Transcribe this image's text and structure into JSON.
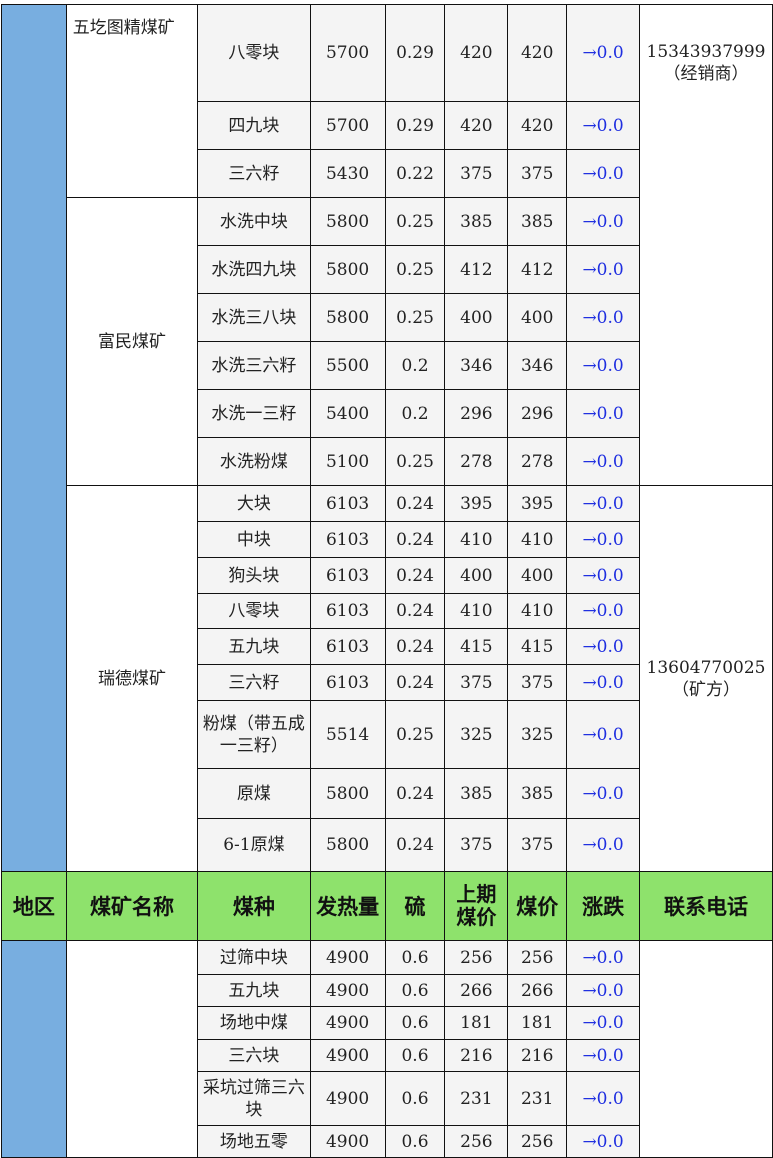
{
  "colors": {
    "region": "#78aee0",
    "header": "#8ee26c",
    "change": "#1f2fe0"
  },
  "header": [
    "地区",
    "煤矿名称",
    "煤种",
    "发热量",
    "硫",
    "上期煤价",
    "煤价",
    "涨跌",
    "联系电话"
  ],
  "sections": [
    {
      "position": "above-header",
      "mines": [
        {
          "name": "五圪图精煤矿",
          "phone_group": 0,
          "rows": [
            [
              "八零块",
              "5700",
              "0.29",
              "420",
              "420",
              "→0.0"
            ],
            [
              "四九块",
              "5700",
              "0.29",
              "420",
              "420",
              "→0.0"
            ],
            [
              "三六籽",
              "5430",
              "0.22",
              "375",
              "375",
              "→0.0"
            ]
          ]
        },
        {
          "name": "富民煤矿",
          "phone_group": 0,
          "rows": [
            [
              "水洗中块",
              "5800",
              "0.25",
              "385",
              "385",
              "→0.0"
            ],
            [
              "水洗四九块",
              "5800",
              "0.25",
              "412",
              "412",
              "→0.0"
            ],
            [
              "水洗三八块",
              "5800",
              "0.25",
              "400",
              "400",
              "→0.0"
            ],
            [
              "水洗三六籽",
              "5500",
              "0.2",
              "346",
              "346",
              "→0.0"
            ],
            [
              "水洗一三籽",
              "5400",
              "0.2",
              "296",
              "296",
              "→0.0"
            ],
            [
              "水洗粉煤",
              "5100",
              "0.25",
              "278",
              "278",
              "→0.0"
            ]
          ]
        },
        {
          "name": "瑞德煤矿",
          "phone_group": 1,
          "rows": [
            [
              "大块",
              "6103",
              "0.24",
              "395",
              "395",
              "→0.0"
            ],
            [
              "中块",
              "6103",
              "0.24",
              "410",
              "410",
              "→0.0"
            ],
            [
              "狗头块",
              "6103",
              "0.24",
              "400",
              "400",
              "→0.0"
            ],
            [
              "八零块",
              "6103",
              "0.24",
              "410",
              "410",
              "→0.0"
            ],
            [
              "五九块",
              "6103",
              "0.24",
              "415",
              "415",
              "→0.0"
            ],
            [
              "三六籽",
              "6103",
              "0.24",
              "375",
              "375",
              "→0.0"
            ],
            [
              "粉煤（带五成一三籽）",
              "5514",
              "0.25",
              "325",
              "325",
              "→0.0"
            ],
            [
              "原煤",
              "5800",
              "0.24",
              "385",
              "385",
              "→0.0"
            ],
            [
              "6-1原煤",
              "5800",
              "0.24",
              "375",
              "375",
              "→0.0"
            ]
          ]
        }
      ],
      "phones": [
        {
          "number": "15343937999",
          "note": "（经销商）"
        },
        {
          "number": "13604770025",
          "note": "（矿方）"
        }
      ]
    },
    {
      "position": "below-header",
      "mines": [
        {
          "name": "",
          "rows": [
            [
              "过筛中块",
              "4900",
              "0.6",
              "256",
              "256",
              "→0.0"
            ],
            [
              "五九块",
              "4900",
              "0.6",
              "266",
              "266",
              "→0.0"
            ],
            [
              "场地中煤",
              "4900",
              "0.6",
              "181",
              "181",
              "→0.0"
            ],
            [
              "三六块",
              "4900",
              "0.6",
              "216",
              "216",
              "→0.0"
            ],
            [
              "采坑过筛三六块",
              "4900",
              "0.6",
              "231",
              "231",
              "→0.0"
            ],
            [
              "场地五零",
              "4900",
              "0.6",
              "256",
              "256",
              "→0.0"
            ]
          ]
        }
      ]
    }
  ]
}
